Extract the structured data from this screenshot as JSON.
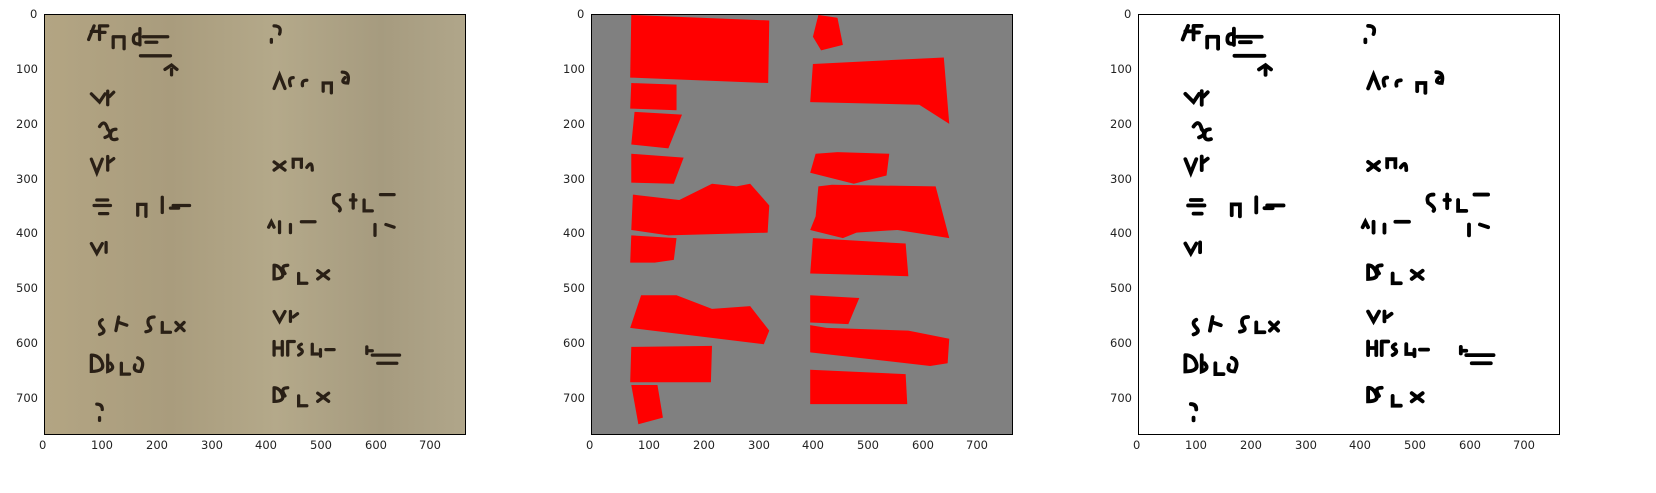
{
  "figure": {
    "panels": [
      {
        "id": "original",
        "description_kind": "photo",
        "x_ticks": [
          "0",
          "100",
          "200",
          "300",
          "400",
          "500",
          "600",
          "700"
        ],
        "y_ticks": [
          "0",
          "100",
          "200",
          "300",
          "400",
          "500",
          "600",
          "700"
        ],
        "background": "#b3a685"
      },
      {
        "id": "mask",
        "description_kind": "mask",
        "x_ticks": [
          "0",
          "100",
          "200",
          "300",
          "400",
          "500",
          "600",
          "700"
        ],
        "y_ticks": [
          "0",
          "100",
          "200",
          "300",
          "400",
          "500",
          "600",
          "700"
        ],
        "background": "#808080",
        "region_color": "#ff0000"
      },
      {
        "id": "binarized",
        "description_kind": "binary",
        "x_ticks": [
          "0",
          "100",
          "200",
          "300",
          "400",
          "500",
          "600",
          "700"
        ],
        "y_ticks": [
          "0",
          "100",
          "200",
          "300",
          "400",
          "500",
          "600",
          "700"
        ],
        "background": "#ffffff"
      }
    ],
    "ink_color": "#1e1a16",
    "handwriting_lines": [
      "εF∏  d a−x",
      "a",
      "∇Γ",
      "BC̆",
      "∇Γ",
      "a−x/a ∏ b/a a−x",
      "∇Γ",
      "Sb∏ εD∏ x,",
      "DB∏ ∂",
      "a/?",
      "a/?",
      "A B C ∏ cb/2",
      "x ∏ a,",
      "εF∏ d∏a",
      "A³∏ a−x  AD∏a",
      "∂ε∏ x,",
      "∇Γ",
      "HF^SL∏ b/a ax−x",
      "∂ε∏ x,"
    ]
  }
}
